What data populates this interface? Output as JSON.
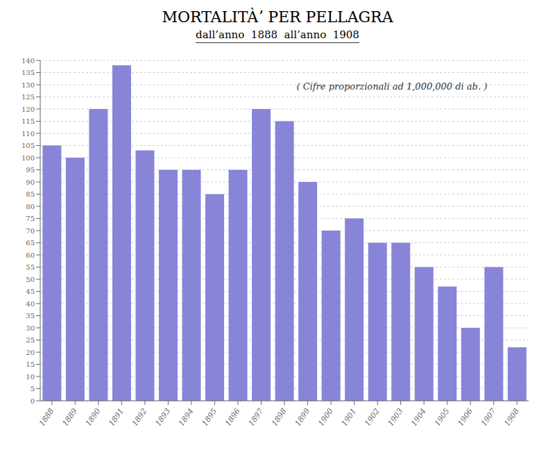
{
  "chart_data": {
    "type": "bar",
    "title": "MORTALITÀʼ PER PELLAGRA",
    "subtitle": "dall’anno  1888  all’anno  1908",
    "annotations": [
      "( Cifre proporzionali ad 1,000,000 di ab. )"
    ],
    "categories": [
      "1888",
      "1889",
      "1890",
      "1891",
      "1892",
      "1893",
      "1894",
      "1895",
      "1896",
      "1897",
      "1898",
      "1899",
      "1900",
      "1901",
      "1902",
      "1903",
      "1904",
      "1905",
      "1906",
      "1907",
      "1908"
    ],
    "values": [
      105,
      100,
      120,
      138,
      103,
      95,
      95,
      85,
      95,
      120,
      115,
      90,
      70,
      75,
      65,
      65,
      55,
      47,
      30,
      55,
      22
    ],
    "ylim": [
      0,
      140
    ],
    "yticks": [
      0,
      5,
      10,
      15,
      20,
      25,
      30,
      35,
      40,
      45,
      50,
      55,
      60,
      65,
      70,
      75,
      80,
      85,
      90,
      95,
      100,
      105,
      110,
      115,
      120,
      125,
      130,
      135,
      140
    ],
    "grid": true
  }
}
